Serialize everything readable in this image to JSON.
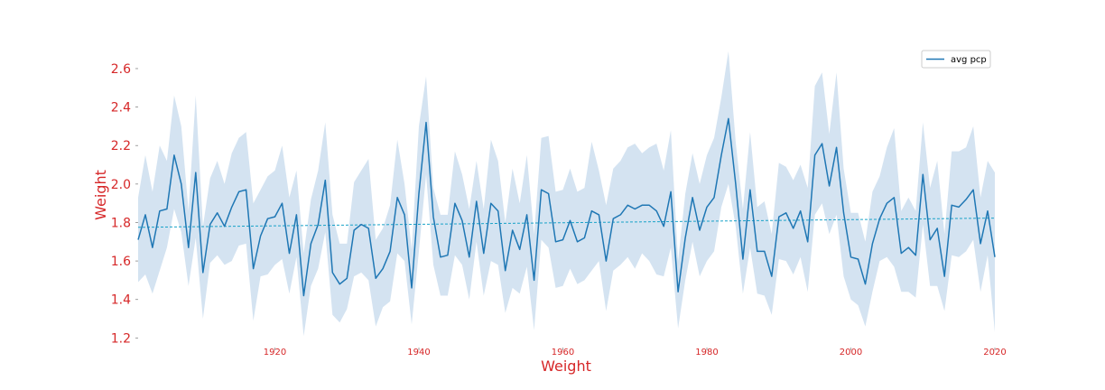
{
  "chart_data": {
    "type": "line",
    "title": "",
    "xlabel": "Weight",
    "ylabel": "Weight",
    "xlim": [
      1901,
      2020
    ],
    "ylim": [
      1.15,
      2.75
    ],
    "xticks": [
      "1920",
      "1940",
      "1960",
      "1980",
      "2000",
      "2020"
    ],
    "yticks": [
      "1.2",
      "1.4",
      "1.6",
      "1.8",
      "2.0",
      "2.2",
      "2.4",
      "2.6"
    ],
    "grid": false,
    "legend": {
      "position": "top-right",
      "entries": [
        "avg pcp"
      ]
    },
    "colors": {
      "line": "#1f77b4",
      "band": "#b7d1e8",
      "trend": "#17a2c8",
      "text": "#d62728"
    },
    "x": [
      1901,
      1902,
      1903,
      1904,
      1905,
      1906,
      1907,
      1908,
      1909,
      1910,
      1911,
      1912,
      1913,
      1914,
      1915,
      1916,
      1917,
      1918,
      1919,
      1920,
      1921,
      1922,
      1923,
      1924,
      1925,
      1926,
      1927,
      1928,
      1929,
      1930,
      1931,
      1932,
      1933,
      1934,
      1935,
      1936,
      1937,
      1938,
      1939,
      1940,
      1941,
      1942,
      1943,
      1944,
      1945,
      1946,
      1947,
      1948,
      1949,
      1950,
      1951,
      1952,
      1953,
      1954,
      1955,
      1956,
      1957,
      1958,
      1959,
      1960,
      1961,
      1962,
      1963,
      1964,
      1965,
      1966,
      1967,
      1968,
      1969,
      1970,
      1971,
      1972,
      1973,
      1974,
      1975,
      1976,
      1977,
      1978,
      1979,
      1980,
      1981,
      1982,
      1983,
      1984,
      1985,
      1986,
      1987,
      1988,
      1989,
      1990,
      1991,
      1992,
      1993,
      1994,
      1995,
      1996,
      1997,
      1998,
      1999,
      2000,
      2001,
      2002,
      2003,
      2004,
      2005,
      2006,
      2007,
      2008,
      2009,
      2010,
      2011,
      2012,
      2013,
      2014,
      2015,
      2016,
      2017,
      2018,
      2019,
      2020
    ],
    "series": [
      {
        "name": "avg pcp",
        "values": [
          1.71,
          1.84,
          1.67,
          1.86,
          1.87,
          2.15,
          2.0,
          1.67,
          2.06,
          1.54,
          1.79,
          1.85,
          1.78,
          1.88,
          1.96,
          1.97,
          1.56,
          1.73,
          1.82,
          1.83,
          1.9,
          1.64,
          1.84,
          1.42,
          1.69,
          1.79,
          2.02,
          1.54,
          1.48,
          1.51,
          1.76,
          1.79,
          1.77,
          1.51,
          1.56,
          1.65,
          1.93,
          1.84,
          1.46,
          1.95,
          2.32,
          1.83,
          1.62,
          1.63,
          1.9,
          1.81,
          1.62,
          1.91,
          1.64,
          1.9,
          1.86,
          1.55,
          1.76,
          1.66,
          1.84,
          1.5,
          1.97,
          1.95,
          1.7,
          1.71,
          1.81,
          1.7,
          1.72,
          1.86,
          1.84,
          1.6,
          1.82,
          1.84,
          1.89,
          1.87,
          1.89,
          1.89,
          1.86,
          1.78,
          1.96,
          1.44,
          1.72,
          1.93,
          1.76,
          1.88,
          1.93,
          2.15,
          2.34,
          2.0,
          1.61,
          1.97,
          1.65,
          1.65,
          1.52,
          1.83,
          1.85,
          1.77,
          1.86,
          1.7,
          2.15,
          2.21,
          1.99,
          2.19,
          1.85,
          1.62,
          1.61,
          1.48,
          1.69,
          1.82,
          1.9,
          1.93,
          1.64,
          1.67,
          1.63,
          2.05,
          1.71,
          1.77,
          1.52,
          1.89,
          1.88,
          1.92,
          1.97,
          1.69,
          1.86,
          1.62
        ],
        "upper": [
          1.93,
          2.15,
          1.96,
          2.2,
          2.12,
          2.46,
          2.3,
          1.86,
          2.46,
          1.78,
          2.03,
          2.12,
          2.0,
          2.16,
          2.24,
          2.27,
          1.9,
          1.97,
          2.04,
          2.07,
          2.2,
          1.93,
          2.07,
          1.64,
          1.92,
          2.07,
          2.32,
          1.84,
          1.69,
          1.69,
          2.01,
          2.07,
          2.13,
          1.71,
          1.77,
          1.89,
          2.23,
          2.0,
          1.66,
          2.3,
          2.56,
          1.98,
          1.84,
          1.84,
          2.17,
          2.05,
          1.87,
          2.12,
          1.87,
          2.23,
          2.12,
          1.8,
          2.08,
          1.9,
          2.15,
          1.74,
          2.24,
          2.25,
          1.96,
          1.97,
          2.08,
          1.96,
          1.98,
          2.22,
          2.07,
          1.89,
          2.08,
          2.12,
          2.19,
          2.21,
          2.16,
          2.19,
          2.21,
          2.07,
          2.28,
          1.6,
          1.95,
          2.16,
          2.0,
          2.15,
          2.24,
          2.45,
          2.69,
          2.22,
          1.87,
          2.27,
          1.88,
          1.91,
          1.74,
          2.11,
          2.09,
          2.02,
          2.1,
          1.98,
          2.51,
          2.58,
          2.26,
          2.58,
          2.08,
          1.85,
          1.85,
          1.7,
          1.96,
          2.04,
          2.19,
          2.29,
          1.86,
          1.93,
          1.86,
          2.32,
          1.98,
          2.12,
          1.74,
          2.17,
          2.17,
          2.19,
          2.3,
          1.93,
          2.12,
          2.06
        ],
        "lower": [
          1.49,
          1.53,
          1.43,
          1.55,
          1.67,
          1.87,
          1.75,
          1.47,
          1.72,
          1.3,
          1.59,
          1.63,
          1.58,
          1.6,
          1.68,
          1.69,
          1.29,
          1.52,
          1.53,
          1.58,
          1.61,
          1.43,
          1.62,
          1.21,
          1.47,
          1.56,
          1.75,
          1.32,
          1.28,
          1.35,
          1.52,
          1.54,
          1.5,
          1.26,
          1.36,
          1.39,
          1.64,
          1.6,
          1.27,
          1.65,
          2.05,
          1.58,
          1.42,
          1.42,
          1.63,
          1.58,
          1.4,
          1.7,
          1.42,
          1.6,
          1.58,
          1.33,
          1.46,
          1.43,
          1.57,
          1.24,
          1.71,
          1.67,
          1.46,
          1.47,
          1.56,
          1.48,
          1.5,
          1.55,
          1.6,
          1.34,
          1.55,
          1.58,
          1.62,
          1.56,
          1.64,
          1.6,
          1.53,
          1.52,
          1.67,
          1.25,
          1.5,
          1.7,
          1.52,
          1.6,
          1.65,
          1.88,
          2.0,
          1.78,
          1.43,
          1.67,
          1.43,
          1.42,
          1.32,
          1.61,
          1.6,
          1.53,
          1.62,
          1.44,
          1.84,
          1.9,
          1.74,
          1.84,
          1.52,
          1.4,
          1.37,
          1.26,
          1.44,
          1.6,
          1.62,
          1.57,
          1.44,
          1.44,
          1.41,
          1.79,
          1.47,
          1.47,
          1.34,
          1.63,
          1.62,
          1.65,
          1.71,
          1.44,
          1.63,
          1.23
        ]
      }
    ],
    "trend": {
      "start": [
        1901,
        1.775
      ],
      "end": [
        2020,
        1.823
      ]
    }
  }
}
